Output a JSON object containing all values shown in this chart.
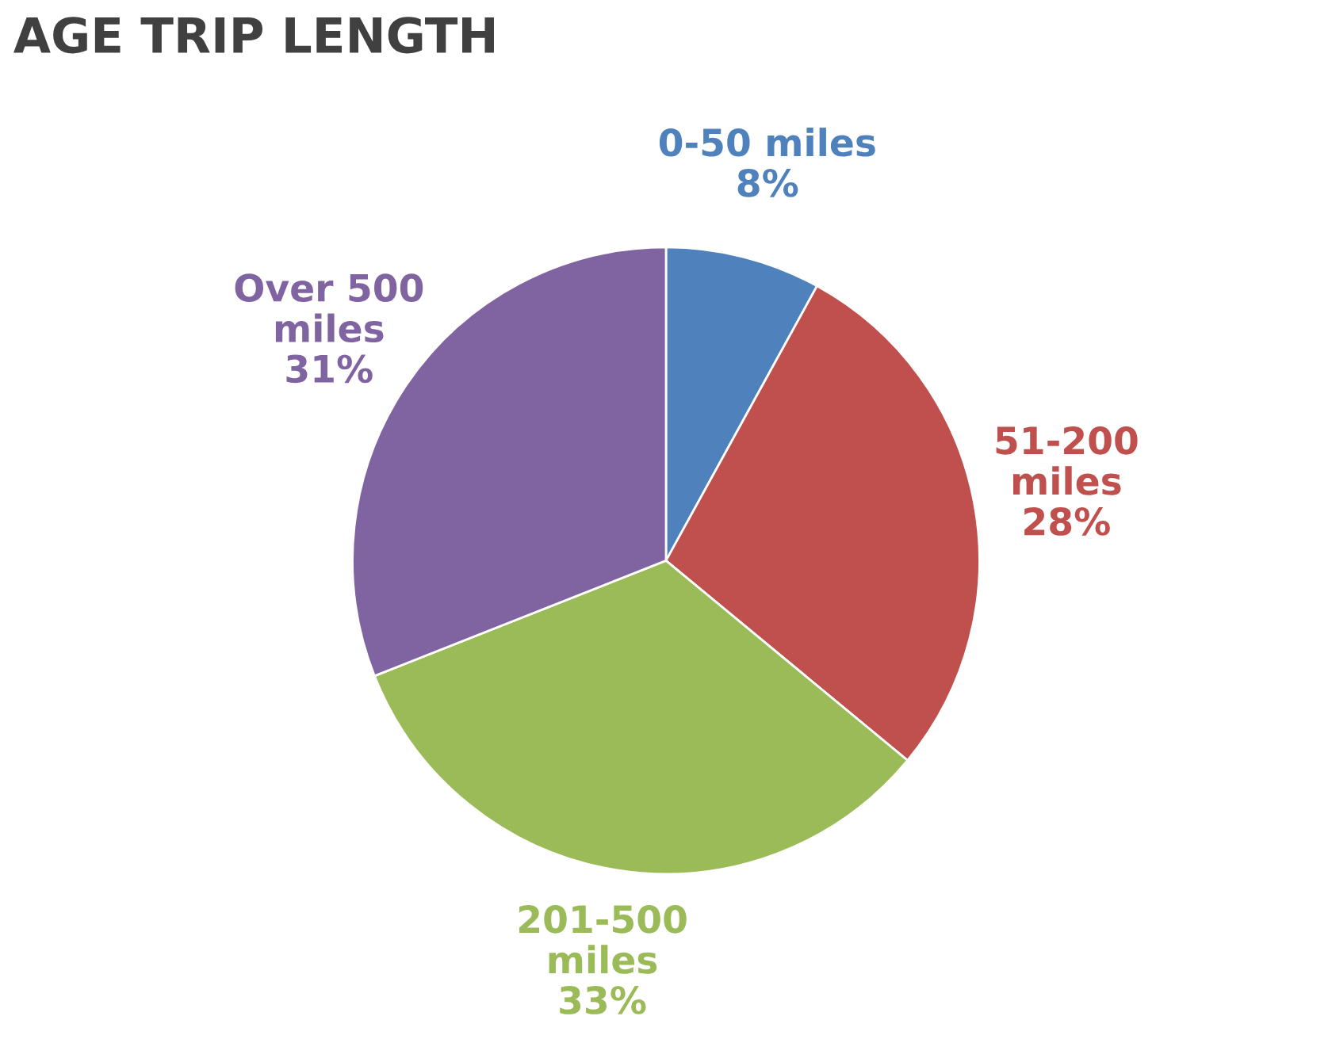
{
  "chart_data": {
    "type": "pie",
    "title": "AGE TRIP LENGTH",
    "categories": [
      "0-50 miles",
      "51-200\nmiles",
      "201-500\nmiles",
      "Over 500\nmiles"
    ],
    "values": [
      8,
      28,
      33,
      31
    ],
    "value_labels": [
      "8%",
      "28%",
      "33%",
      "31%"
    ],
    "colors": [
      "#4f81bd",
      "#c0504d",
      "#9bbb59",
      "#8064a2"
    ]
  }
}
